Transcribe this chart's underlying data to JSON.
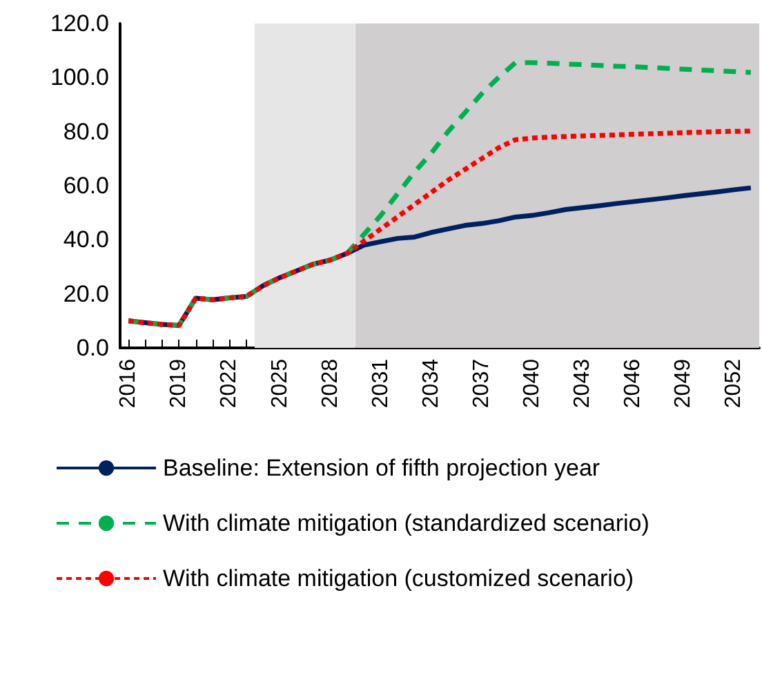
{
  "chart_data": {
    "type": "line",
    "x": [
      2016,
      2017,
      2018,
      2019,
      2020,
      2021,
      2022,
      2023,
      2024,
      2025,
      2026,
      2027,
      2028,
      2029,
      2030,
      2031,
      2032,
      2033,
      2034,
      2035,
      2036,
      2037,
      2038,
      2039,
      2040,
      2041,
      2042,
      2043,
      2044,
      2045,
      2046,
      2047,
      2048,
      2049,
      2050,
      2051,
      2052,
      2053
    ],
    "xlim": [
      2015.5,
      2053.5
    ],
    "xticks": [
      2016,
      {
        "value": 2017,
        "label": null
      },
      {
        "value": 2018,
        "label": null
      },
      2019,
      {
        "value": 2020,
        "label": null
      },
      {
        "value": 2021,
        "label": null
      },
      2022,
      {
        "value": 2023,
        "label": null
      },
      {
        "value": 2024,
        "label": null
      },
      2025,
      {
        "value": 2026,
        "label": null
      },
      {
        "value": 2027,
        "label": null
      },
      2028,
      {
        "value": 2029,
        "label": null
      },
      {
        "value": 2030,
        "label": null
      },
      2031,
      {
        "value": 2032,
        "label": null
      },
      {
        "value": 2033,
        "label": null
      },
      2034,
      {
        "value": 2035,
        "label": null
      },
      {
        "value": 2036,
        "label": null
      },
      2037,
      {
        "value": 2038,
        "label": null
      },
      {
        "value": 2039,
        "label": null
      },
      2040,
      {
        "value": 2041,
        "label": null
      },
      {
        "value": 2042,
        "label": null
      },
      2043,
      {
        "value": 2044,
        "label": null
      },
      {
        "value": 2045,
        "label": null
      },
      2046,
      {
        "value": 2047,
        "label": null
      },
      {
        "value": 2048,
        "label": null
      },
      2049,
      {
        "value": 2050,
        "label": null
      },
      {
        "value": 2051,
        "label": null
      },
      2052,
      {
        "value": 2053,
        "label": null
      }
    ],
    "ylim": [
      0,
      120
    ],
    "yticks": [
      {
        "value": 0,
        "label": "0.0"
      },
      {
        "value": 20,
        "label": "20.0"
      },
      {
        "value": 40,
        "label": "40.0"
      },
      {
        "value": 60,
        "label": "60.0"
      },
      {
        "value": 80,
        "label": "80.0"
      },
      {
        "value": 100,
        "label": "100.0"
      },
      {
        "value": 120,
        "label": "120.0"
      }
    ],
    "grid": false,
    "legend": "bottom",
    "bands": [
      {
        "axis": "x",
        "from": 2023.5,
        "to": 2029.5,
        "color": "#e6e6e6"
      },
      {
        "axis": "x",
        "from": 2029.5,
        "to": 2053.5,
        "color": "#d0cece"
      }
    ],
    "series": [
      {
        "name": "Baseline: Extension of fifth projection year",
        "color": "#002060",
        "line_style": "solid",
        "values": [
          10,
          9.3,
          8.7,
          8.3,
          18.4,
          17.8,
          18.5,
          19,
          23,
          26,
          28.5,
          31,
          32.5,
          35,
          38,
          39.3,
          40.5,
          41,
          42.7,
          44,
          45.3,
          46,
          47,
          48.4,
          49,
          50,
          51.2,
          51.9,
          52.6,
          53.4,
          54.1,
          54.8,
          55.5,
          56.3,
          57,
          57.7,
          58.5,
          59.2
        ]
      },
      {
        "name": "With climate mitigation (standardized scenario)",
        "color": "#00b050",
        "line_style": "dashed",
        "values": [
          10,
          9.3,
          8.7,
          8.3,
          18.4,
          17.8,
          18.5,
          19,
          23,
          26,
          28.5,
          31,
          32.5,
          35,
          42,
          49,
          57,
          65,
          72,
          80,
          87,
          94,
          100,
          105.5,
          105.5,
          105.3,
          105,
          104.8,
          104.5,
          104.2,
          104,
          103.7,
          103.4,
          103.1,
          102.8,
          102.5,
          102.2,
          101.9
        ]
      },
      {
        "name": "With climate mitigation (customized scenario)",
        "color": "#ff0000",
        "line_style": "dotted",
        "values": [
          10,
          9.3,
          8.7,
          8.3,
          18.4,
          17.8,
          18.5,
          19,
          23,
          26,
          28.5,
          31,
          32.5,
          35,
          39.5,
          44,
          48.5,
          53,
          57.5,
          62,
          66,
          70,
          74,
          77,
          77.6,
          78,
          78.2,
          78.4,
          78.6,
          78.8,
          79,
          79.2,
          79.4,
          79.6,
          79.8,
          80,
          80.1,
          80.2
        ]
      }
    ]
  }
}
